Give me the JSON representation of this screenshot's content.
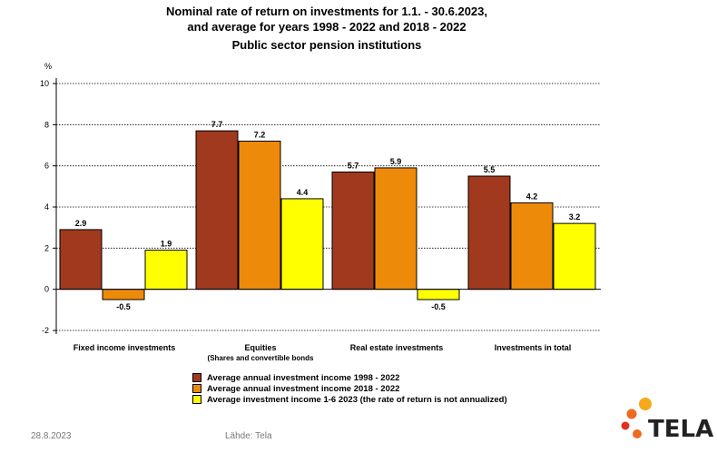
{
  "titles": {
    "line1": "Nominal rate of return on investments for 1.1. - 30.6.2023,",
    "line2": "and average for years 1998 - 2022 and 2018 - 2022",
    "line3": "Public sector pension institutions"
  },
  "chart_data": {
    "type": "bar",
    "yunit": "%",
    "ylim": [
      -2,
      10
    ],
    "yticks": [
      -2,
      0,
      2,
      4,
      6,
      8,
      10
    ],
    "grid": true,
    "categories": [
      "Fixed income investments",
      "Equities",
      "Real estate investments",
      "Investments  in total"
    ],
    "category_sublabels": [
      "",
      "(Shares and  convertible bonds",
      "",
      ""
    ],
    "series": [
      {
        "name": "Average annual investment income 1998 - 2022",
        "color": "#A0391E",
        "values": [
          2.9,
          7.7,
          5.7,
          5.5
        ]
      },
      {
        "name": "Average annual investment income 2018 - 2022",
        "color": "#EE8A0A",
        "values": [
          -0.5,
          7.2,
          5.9,
          4.2
        ]
      },
      {
        "name": "Average investment income 1-6 2023 (the rate of return is not annualized)",
        "color": "#FFFF00",
        "values": [
          1.9,
          4.4,
          -0.5,
          3.2
        ]
      }
    ],
    "data_labels": [
      [
        "2.9",
        "7.7",
        "5.7",
        "5.5"
      ],
      [
        "-0.5",
        "7.2",
        "5.9",
        "4.2"
      ],
      [
        "1.9",
        "4.4",
        "-0.5",
        "3.2"
      ]
    ],
    "legend_position": "bottom"
  },
  "footer": {
    "date": "28.8.2023",
    "source": "Lähde: Tela"
  },
  "logo": {
    "text": "TELA",
    "colors": [
      "#F7A81B",
      "#EE6A1F",
      "#E2301E"
    ]
  }
}
